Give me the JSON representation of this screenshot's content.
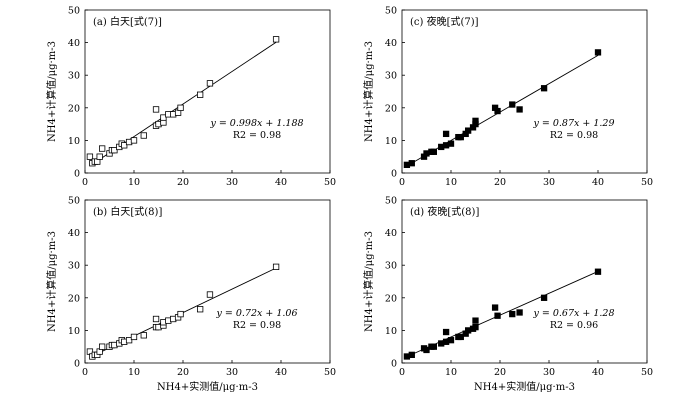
{
  "chart_data": [
    {
      "type": "scatter",
      "panel_label": "(a) 白天[式(7)]",
      "ylabel": "NH4+计算值/μg·m-3",
      "xlabel": "",
      "xlim": [
        0,
        50
      ],
      "ylim": [
        0,
        50
      ],
      "xticks": [
        0,
        10,
        20,
        30,
        40,
        50
      ],
      "yticks": [
        0,
        10,
        20,
        30,
        40,
        50
      ],
      "marker": "open-square",
      "equation": "y = 0.998x + 1.188",
      "r2": "R2 = 0.98",
      "fit": {
        "slope": 0.998,
        "intercept": 1.188,
        "x_range": [
          1,
          39
        ]
      },
      "points": [
        [
          1,
          5
        ],
        [
          1.5,
          3
        ],
        [
          2,
          3.5
        ],
        [
          2.5,
          3.5
        ],
        [
          3,
          5
        ],
        [
          3.5,
          7.5
        ],
        [
          5,
          6
        ],
        [
          5.5,
          7
        ],
        [
          6,
          7
        ],
        [
          7,
          8
        ],
        [
          7.5,
          9
        ],
        [
          8,
          8.5
        ],
        [
          9,
          9.5
        ],
        [
          10,
          10
        ],
        [
          12,
          11.5
        ],
        [
          14.5,
          14.5
        ],
        [
          14.5,
          19.5
        ],
        [
          15,
          15
        ],
        [
          16,
          15.5
        ],
        [
          16,
          17
        ],
        [
          17,
          18
        ],
        [
          18,
          18
        ],
        [
          19,
          18.5
        ],
        [
          19.5,
          20
        ],
        [
          23.5,
          24
        ],
        [
          25.5,
          27.5
        ],
        [
          39,
          41
        ]
      ]
    },
    {
      "type": "scatter",
      "panel_label": "(c) 夜晚[式(7)]",
      "ylabel": "NH4+计算值/μg·m-3",
      "xlabel": "",
      "xlim": [
        0,
        50
      ],
      "ylim": [
        0,
        50
      ],
      "xticks": [
        0,
        10,
        20,
        30,
        40,
        50
      ],
      "yticks": [
        0,
        10,
        20,
        30,
        40,
        50
      ],
      "marker": "filled-square",
      "equation": "y = 0.87x + 1.29",
      "r2": "R2 = 0.98",
      "fit": {
        "slope": 0.87,
        "intercept": 1.29,
        "x_range": [
          1,
          40
        ]
      },
      "points": [
        [
          1,
          2.5
        ],
        [
          2,
          3
        ],
        [
          4.5,
          5
        ],
        [
          5,
          6
        ],
        [
          6,
          6.5
        ],
        [
          6.5,
          6.5
        ],
        [
          8,
          8
        ],
        [
          9,
          12
        ],
        [
          9,
          8.5
        ],
        [
          10,
          9
        ],
        [
          11.5,
          11
        ],
        [
          12,
          11
        ],
        [
          13,
          12
        ],
        [
          13.5,
          13
        ],
        [
          14.5,
          14
        ],
        [
          15,
          15
        ],
        [
          15,
          16
        ],
        [
          19,
          20
        ],
        [
          19.5,
          19
        ],
        [
          22.5,
          21
        ],
        [
          24,
          19.5
        ],
        [
          29,
          26
        ],
        [
          40,
          37
        ]
      ]
    },
    {
      "type": "scatter",
      "panel_label": "(b) 白天[式(8)]",
      "ylabel": "NH4+计算值/μg·m-3",
      "xlabel": "NH4+实测值/μg·m-3",
      "xlim": [
        0,
        50
      ],
      "ylim": [
        0,
        50
      ],
      "xticks": [
        0,
        10,
        20,
        30,
        40,
        50
      ],
      "yticks": [
        0,
        10,
        20,
        30,
        40,
        50
      ],
      "marker": "open-square",
      "equation": "y = 0.72x + 1.06",
      "r2": "R2 = 0.98",
      "fit": {
        "slope": 0.72,
        "intercept": 1.06,
        "x_range": [
          1,
          39
        ]
      },
      "points": [
        [
          1,
          3.5
        ],
        [
          1.5,
          2
        ],
        [
          2,
          2.5
        ],
        [
          2.5,
          2.5
        ],
        [
          3,
          3.5
        ],
        [
          3.5,
          5
        ],
        [
          5,
          5
        ],
        [
          5.5,
          5.5
        ],
        [
          6,
          5.5
        ],
        [
          7,
          6
        ],
        [
          7.5,
          7
        ],
        [
          8,
          6.5
        ],
        [
          9,
          7
        ],
        [
          10,
          8
        ],
        [
          12,
          8.5
        ],
        [
          14.5,
          11
        ],
        [
          14.5,
          13.5
        ],
        [
          15,
          11
        ],
        [
          16,
          11.5
        ],
        [
          16,
          12.5
        ],
        [
          17,
          13
        ],
        [
          18,
          13.5
        ],
        [
          19,
          14
        ],
        [
          19.5,
          15
        ],
        [
          23.5,
          16.5
        ],
        [
          25.5,
          21
        ],
        [
          39,
          29.5
        ]
      ]
    },
    {
      "type": "scatter",
      "panel_label": "(d) 夜晚[式(8)]",
      "ylabel": "NH4+计算值/μg·m-3",
      "xlabel": "NH4+实测值/μg·m-3",
      "xlim": [
        0,
        50
      ],
      "ylim": [
        0,
        50
      ],
      "xticks": [
        0,
        10,
        20,
        30,
        40,
        50
      ],
      "yticks": [
        0,
        10,
        20,
        30,
        40,
        50
      ],
      "marker": "filled-square",
      "equation": "y = 0.67x + 1.28",
      "r2": "R2 = 0.96",
      "fit": {
        "slope": 0.67,
        "intercept": 1.28,
        "x_range": [
          1,
          40
        ]
      },
      "points": [
        [
          1,
          2
        ],
        [
          2,
          2.5
        ],
        [
          4.5,
          4.5
        ],
        [
          5,
          4
        ],
        [
          6,
          5
        ],
        [
          6.5,
          5
        ],
        [
          8,
          6
        ],
        [
          9,
          9.5
        ],
        [
          9,
          6.5
        ],
        [
          10,
          7
        ],
        [
          11.5,
          8
        ],
        [
          12,
          8
        ],
        [
          13,
          9
        ],
        [
          13.5,
          10
        ],
        [
          14.5,
          10.5
        ],
        [
          15,
          11
        ],
        [
          15,
          13
        ],
        [
          19,
          17
        ],
        [
          19.5,
          14.5
        ],
        [
          22.5,
          15
        ],
        [
          24,
          15.5
        ],
        [
          29,
          20
        ],
        [
          40,
          28
        ]
      ]
    }
  ]
}
